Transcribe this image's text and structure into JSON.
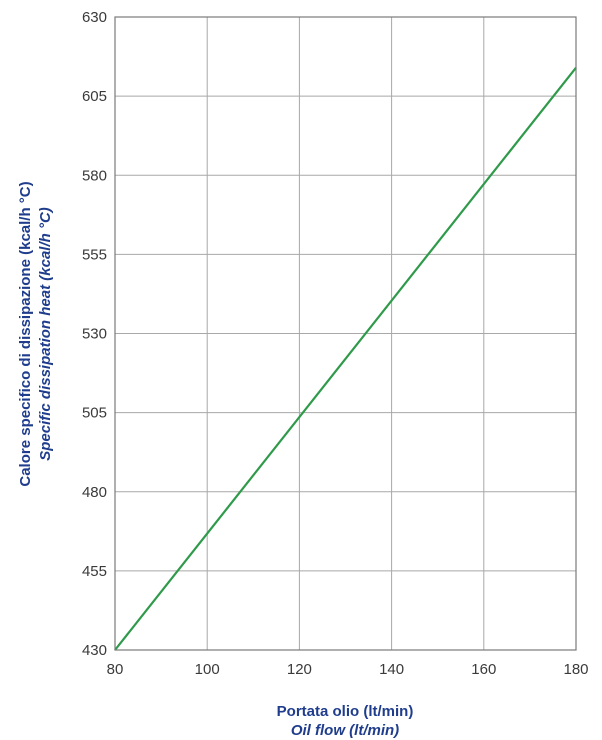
{
  "chart_data": {
    "type": "line",
    "x_ticks": [
      80,
      100,
      120,
      140,
      160,
      180
    ],
    "y_ticks": [
      430,
      455,
      480,
      505,
      530,
      555,
      580,
      605,
      630
    ],
    "xlim": [
      80,
      180
    ],
    "ylim": [
      430,
      630
    ],
    "xlabel": [
      "Portata olio (lt/min)",
      "Oil flow (lt/min)"
    ],
    "ylabel": [
      "Calore specifico di dissipazione (kcal/h °C)",
      "Specific dissipation heat (kcal/h °C)"
    ],
    "grid": true,
    "series": [
      {
        "x": [
          80,
          180
        ],
        "y": [
          430,
          614
        ],
        "color": "#2e9a4a"
      }
    ]
  }
}
